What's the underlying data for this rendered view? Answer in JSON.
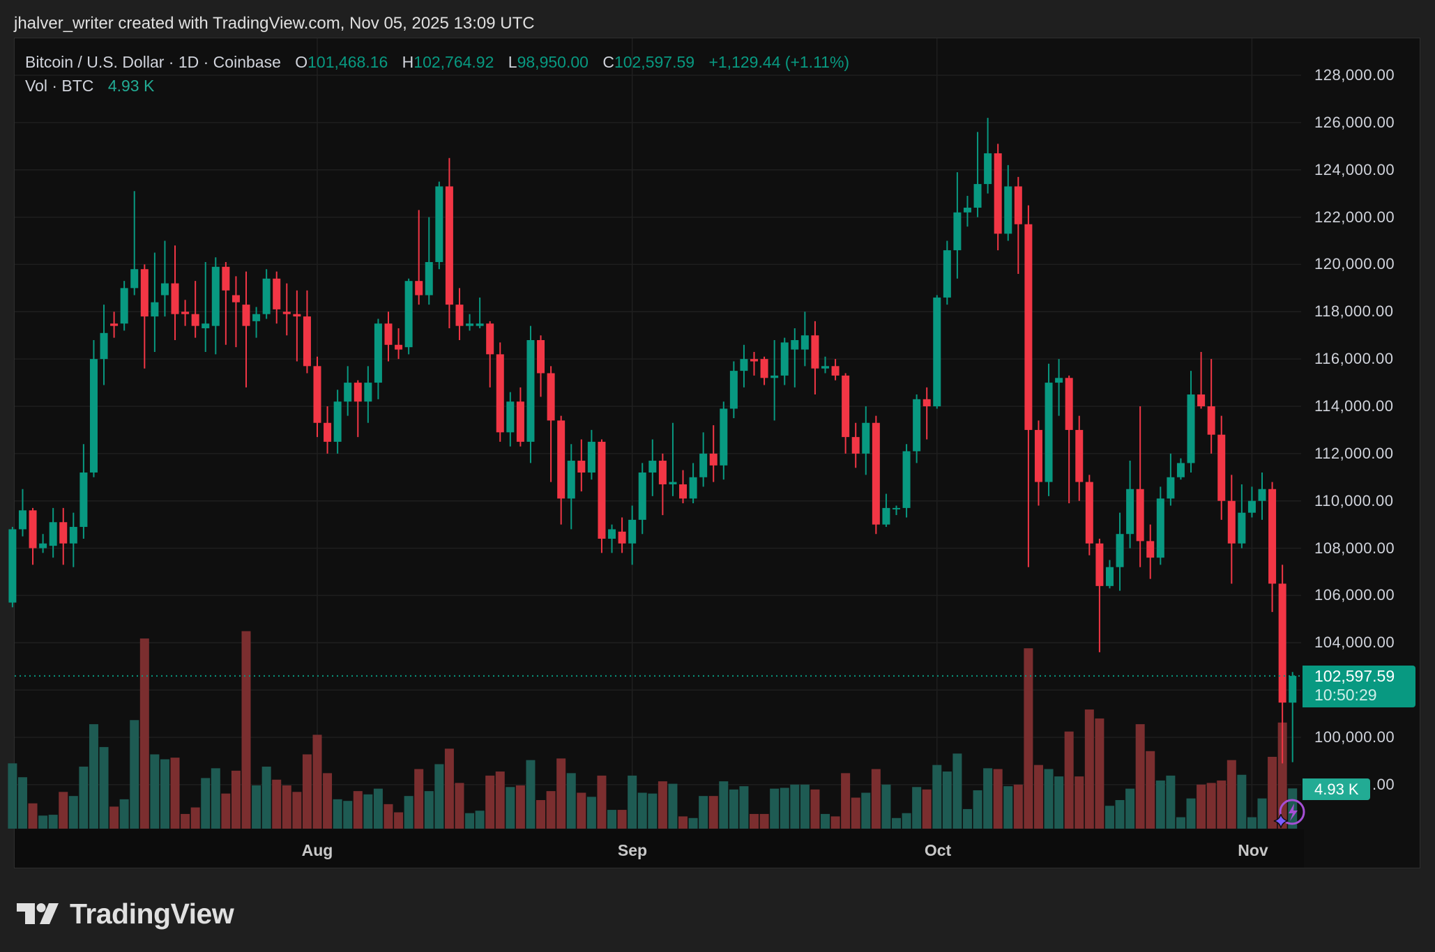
{
  "credit": "jhalver_writer created with TradingView.com, Nov 05, 2025 13:09 UTC",
  "legend": {
    "symbol": "Bitcoin / U.S. Dollar · 1D · Coinbase",
    "o_label": "O",
    "o_value": "101,468.16",
    "h_label": "H",
    "h_value": "102,764.92",
    "l_label": "L",
    "l_value": "98,950.00",
    "c_label": "C",
    "c_value": "102,597.59",
    "change": "+1,129.44 (+1.11%)",
    "vol_label": "Vol · BTC",
    "vol_value": "4.93 K"
  },
  "price_axis": [
    "128,000.00",
    "126,000.00",
    "124,000.00",
    "122,000.00",
    "120,000.00",
    "118,000.00",
    "116,000.00",
    "114,000.00",
    "112,000.00",
    "110,000.00",
    "108,000.00",
    "106,000.00",
    "104,000.00",
    "100,000.00",
    ".00"
  ],
  "time_axis": [
    "Aug",
    "Sep",
    "Oct",
    "Nov"
  ],
  "last_price_tag": {
    "price": "102,597.59",
    "countdown": "10:50:29"
  },
  "volume_tag": "4.93 K",
  "footer": {
    "brand": "TradingView"
  },
  "colors": {
    "up": "#089981",
    "down": "#f23645",
    "up_volume": "#1e5b53",
    "down_volume": "#7b2e2f",
    "background": "#0f0f0f",
    "grid": "#1f1f1f"
  },
  "icons": {
    "logo": "tradingview-logo-icon",
    "assistant": "sparkle-lightning-icon"
  },
  "chart_data": {
    "type": "candlestick",
    "symbol": "Bitcoin / U.S. Dollar",
    "interval": "1D",
    "exchange": "Coinbase",
    "ylim": [
      97000,
      129000
    ],
    "grid": true,
    "x_ticks": [
      "Aug",
      "Sep",
      "Oct",
      "Nov"
    ],
    "fields": [
      "date",
      "open",
      "high",
      "low",
      "close",
      "volume_k_btc"
    ],
    "candles": [
      [
        "2025-07-02",
        105700,
        108900,
        105500,
        108800,
        8.0
      ],
      [
        "2025-07-03",
        108800,
        110500,
        108500,
        109600,
        6.3
      ],
      [
        "2025-07-04",
        109600,
        109700,
        107300,
        108000,
        3.1
      ],
      [
        "2025-07-05",
        108000,
        108600,
        107800,
        108200,
        1.6
      ],
      [
        "2025-07-06",
        108100,
        109700,
        107600,
        109100,
        1.7
      ],
      [
        "2025-07-07",
        109100,
        109700,
        107300,
        108200,
        4.5
      ],
      [
        "2025-07-08",
        108200,
        109500,
        107200,
        108900,
        4.0
      ],
      [
        "2025-07-09",
        108900,
        112400,
        108400,
        111200,
        7.6
      ],
      [
        "2025-07-10",
        111200,
        116800,
        111000,
        116000,
        12.8
      ],
      [
        "2025-07-11",
        116000,
        118300,
        114900,
        117100,
        10.0
      ],
      [
        "2025-07-12",
        117500,
        118000,
        116900,
        117400,
        2.7
      ],
      [
        "2025-07-13",
        117500,
        119300,
        117200,
        119000,
        3.6
      ],
      [
        "2025-07-14",
        119000,
        123100,
        118700,
        119800,
        13.3
      ],
      [
        "2025-07-15",
        119800,
        120000,
        115600,
        117800,
        23.3
      ],
      [
        "2025-07-16",
        117800,
        120500,
        116300,
        118400,
        9.1
      ],
      [
        "2025-07-17",
        118700,
        121000,
        117800,
        119200,
        8.5
      ],
      [
        "2025-07-18",
        119200,
        120800,
        116800,
        117900,
        8.7
      ],
      [
        "2025-07-19",
        118000,
        118500,
        117400,
        117900,
        1.8
      ],
      [
        "2025-07-20",
        117900,
        119300,
        116900,
        117400,
        2.6
      ],
      [
        "2025-07-21",
        117300,
        120100,
        116300,
        117500,
        6.2
      ],
      [
        "2025-07-22",
        117400,
        120300,
        116200,
        119900,
        7.4
      ],
      [
        "2025-07-23",
        119900,
        120100,
        116600,
        118900,
        4.3
      ],
      [
        "2025-07-24",
        118700,
        119500,
        116500,
        118400,
        7.1
      ],
      [
        "2025-07-25",
        118300,
        119700,
        114800,
        117400,
        24.2
      ],
      [
        "2025-07-26",
        117600,
        118200,
        116900,
        117900,
        5.3
      ],
      [
        "2025-07-27",
        117900,
        119800,
        117700,
        119400,
        7.6
      ],
      [
        "2025-07-28",
        119400,
        119700,
        117500,
        118100,
        6.0
      ],
      [
        "2025-07-29",
        118000,
        119200,
        117000,
        117900,
        5.3
      ],
      [
        "2025-07-30",
        117900,
        118900,
        115900,
        117800,
        4.5
      ],
      [
        "2025-07-31",
        117800,
        118900,
        115400,
        115700,
        9.1
      ],
      [
        "2025-08-01",
        115700,
        116100,
        112700,
        113300,
        11.5
      ],
      [
        "2025-08-02",
        113300,
        114000,
        112000,
        112500,
        6.8
      ],
      [
        "2025-08-03",
        112500,
        114700,
        112000,
        114200,
        3.6
      ],
      [
        "2025-08-04",
        114200,
        115700,
        113600,
        115000,
        3.4
      ],
      [
        "2025-08-05",
        115000,
        115100,
        112700,
        114200,
        4.6
      ],
      [
        "2025-08-06",
        114200,
        115700,
        113300,
        115000,
        4.2
      ],
      [
        "2025-08-07",
        115000,
        117700,
        114300,
        117500,
        4.9
      ],
      [
        "2025-08-08",
        117500,
        118000,
        115900,
        116600,
        3.0
      ],
      [
        "2025-08-09",
        116600,
        117300,
        116000,
        116400,
        2.0
      ],
      [
        "2025-08-10",
        116500,
        119400,
        116200,
        119300,
        4.0
      ],
      [
        "2025-08-11",
        119300,
        122300,
        118300,
        118700,
        7.3
      ],
      [
        "2025-08-12",
        118700,
        122000,
        118300,
        120100,
        4.6
      ],
      [
        "2025-08-13",
        120100,
        123500,
        119800,
        123300,
        7.9
      ],
      [
        "2025-08-14",
        123300,
        124500,
        117300,
        118300,
        9.8
      ],
      [
        "2025-08-15",
        118300,
        119000,
        116800,
        117400,
        5.6
      ],
      [
        "2025-08-16",
        117400,
        117900,
        117200,
        117500,
        1.9
      ],
      [
        "2025-08-17",
        117400,
        118600,
        117300,
        117500,
        2.2
      ],
      [
        "2025-08-18",
        117500,
        117600,
        114800,
        116200,
        6.5
      ],
      [
        "2025-08-19",
        116200,
        116700,
        112500,
        112900,
        7.0
      ],
      [
        "2025-08-20",
        112900,
        114600,
        112300,
        114200,
        5.1
      ],
      [
        "2025-08-21",
        114200,
        114800,
        112300,
        112500,
        5.3
      ],
      [
        "2025-08-22",
        112500,
        117400,
        111600,
        116800,
        8.4
      ],
      [
        "2025-08-23",
        116800,
        117000,
        114400,
        115400,
        3.5
      ],
      [
        "2025-08-24",
        115400,
        115700,
        110800,
        113400,
        4.6
      ],
      [
        "2025-08-25",
        113400,
        113600,
        109000,
        110100,
        8.6
      ],
      [
        "2025-08-26",
        110100,
        112400,
        108800,
        111700,
        6.8
      ],
      [
        "2025-08-27",
        111700,
        112600,
        110400,
        111200,
        4.4
      ],
      [
        "2025-08-28",
        111200,
        113000,
        110900,
        112500,
        3.9
      ],
      [
        "2025-08-29",
        112500,
        112600,
        107800,
        108400,
        6.5
      ],
      [
        "2025-08-30",
        108400,
        109000,
        107800,
        108800,
        2.3
      ],
      [
        "2025-08-31",
        108700,
        109300,
        107800,
        108200,
        2.3
      ],
      [
        "2025-09-01",
        108200,
        109800,
        107300,
        109200,
        6.5
      ],
      [
        "2025-09-02",
        109200,
        111600,
        108600,
        111200,
        4.4
      ],
      [
        "2025-09-03",
        111200,
        112600,
        110200,
        111700,
        4.3
      ],
      [
        "2025-09-04",
        111700,
        112000,
        109400,
        110700,
        5.8
      ],
      [
        "2025-09-05",
        110700,
        113300,
        110200,
        110800,
        5.5
      ],
      [
        "2025-09-06",
        110700,
        111300,
        109900,
        110100,
        1.5
      ],
      [
        "2025-09-07",
        110100,
        111600,
        109900,
        111000,
        1.3
      ],
      [
        "2025-09-08",
        111000,
        112900,
        110600,
        112000,
        4.0
      ],
      [
        "2025-09-09",
        112000,
        113200,
        110800,
        111500,
        4.0
      ],
      [
        "2025-09-10",
        111500,
        114200,
        110900,
        113900,
        5.8
      ],
      [
        "2025-09-11",
        113900,
        115900,
        113500,
        115500,
        4.8
      ],
      [
        "2025-09-12",
        115500,
        116600,
        114800,
        116000,
        5.2
      ],
      [
        "2025-09-13",
        116000,
        116300,
        115300,
        115900,
        1.8
      ],
      [
        "2025-09-14",
        116000,
        116100,
        114900,
        115200,
        1.8
      ],
      [
        "2025-09-15",
        115200,
        116800,
        113400,
        115300,
        4.9
      ],
      [
        "2025-09-16",
        115300,
        116900,
        114900,
        116700,
        5.0
      ],
      [
        "2025-09-17",
        116400,
        117300,
        114800,
        116800,
        5.4
      ],
      [
        "2025-09-18",
        116400,
        118000,
        115700,
        117000,
        5.4
      ],
      [
        "2025-09-19",
        117000,
        117600,
        114500,
        115600,
        4.8
      ],
      [
        "2025-09-20",
        115600,
        116100,
        115400,
        115700,
        1.8
      ],
      [
        "2025-09-21",
        115700,
        116000,
        115100,
        115300,
        1.5
      ],
      [
        "2025-09-22",
        115300,
        115400,
        112000,
        112700,
        6.8
      ],
      [
        "2025-09-23",
        112700,
        113300,
        111400,
        112000,
        3.8
      ],
      [
        "2025-09-24",
        112000,
        114000,
        111100,
        113300,
        4.4
      ],
      [
        "2025-09-25",
        113300,
        113600,
        108600,
        109000,
        7.3
      ],
      [
        "2025-09-26",
        109000,
        110300,
        108900,
        109700,
        5.4
      ],
      [
        "2025-09-27",
        109700,
        109800,
        109400,
        109700,
        1.3
      ],
      [
        "2025-09-28",
        109700,
        112400,
        109300,
        112100,
        1.9
      ],
      [
        "2025-09-29",
        112100,
        114500,
        111600,
        114300,
        5.1
      ],
      [
        "2025-09-30",
        114300,
        114800,
        112600,
        114000,
        4.8
      ],
      [
        "2025-10-01",
        114000,
        118700,
        113900,
        118600,
        7.8
      ],
      [
        "2025-10-02",
        118600,
        121000,
        118300,
        120600,
        7.0
      ],
      [
        "2025-10-03",
        120600,
        123900,
        119400,
        122200,
        9.2
      ],
      [
        "2025-10-04",
        122200,
        122900,
        121600,
        122400,
        2.4
      ],
      [
        "2025-10-05",
        122400,
        125600,
        122000,
        123400,
        4.7
      ],
      [
        "2025-10-06",
        123400,
        126200,
        123000,
        124700,
        7.4
      ],
      [
        "2025-10-07",
        124700,
        125100,
        120600,
        121300,
        7.3
      ],
      [
        "2025-10-08",
        121300,
        124200,
        121000,
        123300,
        5.2
      ],
      [
        "2025-10-09",
        123300,
        123700,
        119600,
        121700,
        5.4
      ],
      [
        "2025-10-10",
        121700,
        122500,
        107200,
        113000,
        22.1
      ],
      [
        "2025-10-11",
        113000,
        113400,
        109800,
        110800,
        7.8
      ],
      [
        "2025-10-12",
        110800,
        115800,
        110200,
        115000,
        7.3
      ],
      [
        "2025-10-13",
        115000,
        116000,
        113600,
        115200,
        6.4
      ],
      [
        "2025-10-14",
        115200,
        115300,
        109900,
        113000,
        11.9
      ],
      [
        "2025-10-15",
        113000,
        113600,
        110000,
        110800,
        6.4
      ],
      [
        "2025-10-16",
        110800,
        111100,
        107700,
        108200,
        14.6
      ],
      [
        "2025-10-17",
        108200,
        108400,
        103600,
        106400,
        13.5
      ],
      [
        "2025-10-18",
        106400,
        107500,
        106300,
        107200,
        2.8
      ],
      [
        "2025-10-19",
        107200,
        109500,
        106200,
        108600,
        3.5
      ],
      [
        "2025-10-20",
        108600,
        111700,
        108000,
        110500,
        4.9
      ],
      [
        "2025-10-21",
        110500,
        114000,
        107200,
        108300,
        12.8
      ],
      [
        "2025-10-22",
        108300,
        109000,
        106700,
        107600,
        9.5
      ],
      [
        "2025-10-23",
        107600,
        110600,
        107300,
        110100,
        5.9
      ],
      [
        "2025-10-24",
        110100,
        112000,
        109800,
        111000,
        6.5
      ],
      [
        "2025-10-25",
        111000,
        111800,
        110900,
        111600,
        1.4
      ],
      [
        "2025-10-26",
        111600,
        115500,
        111200,
        114500,
        3.7
      ],
      [
        "2025-10-27",
        114500,
        116300,
        113900,
        114000,
        5.4
      ],
      [
        "2025-10-28",
        114000,
        116000,
        112000,
        112800,
        5.6
      ],
      [
        "2025-10-29",
        112800,
        113600,
        109200,
        110000,
        5.9
      ],
      [
        "2025-10-30",
        110000,
        111100,
        106500,
        108200,
        8.4
      ],
      [
        "2025-10-31",
        108200,
        110700,
        108000,
        109500,
        6.6
      ],
      [
        "2025-11-01",
        109500,
        110600,
        109300,
        110000,
        1.4
      ],
      [
        "2025-11-02",
        110000,
        111200,
        109200,
        110500,
        3.7
      ],
      [
        "2025-11-03",
        110500,
        110800,
        105300,
        106500,
        8.8
      ],
      [
        "2025-11-04",
        106500,
        107300,
        98900,
        101470,
        13.0
      ],
      [
        "2025-11-05",
        101468.16,
        102764.92,
        98950,
        102597.59,
        4.93
      ]
    ],
    "last_price": 102597.59
  }
}
